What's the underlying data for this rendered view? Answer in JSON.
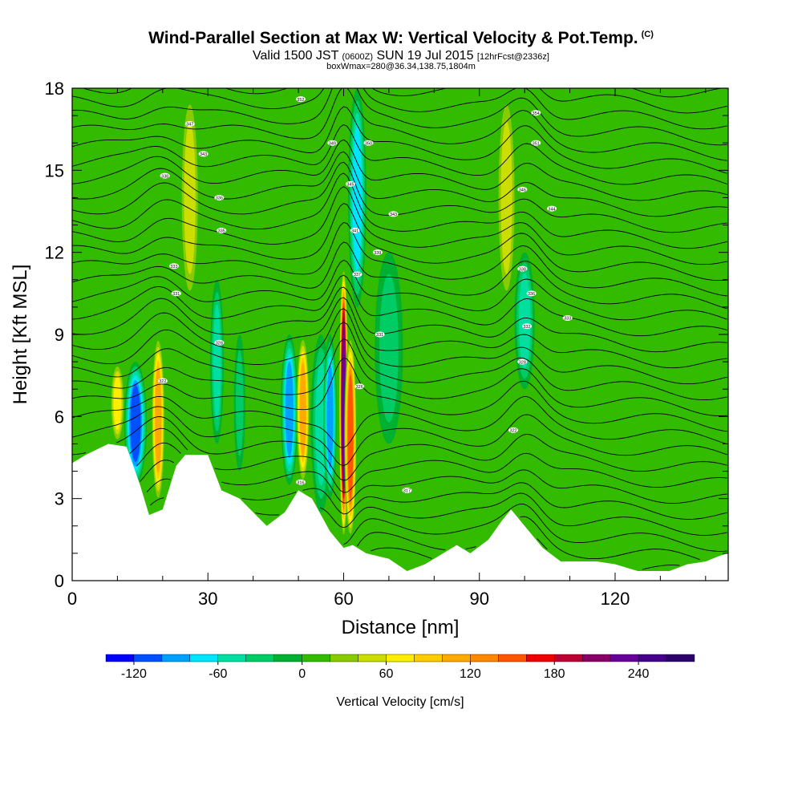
{
  "titles": {
    "main": "Wind-Parallel Section at Max W: Vertical Velocity & Pot.Temp.",
    "corner": "(C)",
    "valid_main": "Valid 1500 JST",
    "valid_small1": "(0600Z)",
    "valid_date": "SUN 19 Jul 2015",
    "valid_small2": "[12hrFcst@2336z]",
    "box": "boxWmax=280@36.34,138.75,1804m"
  },
  "chart_data": {
    "type": "heatmap",
    "title": "Wind-Parallel Section at Max W: Vertical Velocity & Pot.Temp.",
    "xlabel": "Distance [nm]",
    "ylabel": "Height [Kft MSL]",
    "xlim": [
      0,
      145
    ],
    "ylim": [
      0,
      18
    ],
    "x_ticks": [
      0,
      30,
      60,
      90,
      120
    ],
    "y_ticks": [
      0,
      3,
      6,
      9,
      12,
      15,
      18
    ],
    "colorbar": {
      "label": "Vertical Velocity [cm/s]",
      "min": -140,
      "max": 280,
      "step": 20,
      "tick_values": [
        -120,
        -60,
        0,
        60,
        120,
        180,
        240
      ],
      "colors": [
        "#0000ff",
        "#0050ff",
        "#00a0ff",
        "#00e5ff",
        "#00dfa0",
        "#00cc66",
        "#00b030",
        "#33bb00",
        "#88cc00",
        "#ccdd00",
        "#ffee00",
        "#ffcc00",
        "#ffaa00",
        "#ff8800",
        "#ff5500",
        "#ee0000",
        "#bb0033",
        "#880066",
        "#660099",
        "#440088",
        "#2a006a"
      ]
    },
    "terrain_kft": [
      [
        0,
        4.3
      ],
      [
        3,
        4.6
      ],
      [
        8,
        5.0
      ],
      [
        12,
        4.9
      ],
      [
        15,
        3.5
      ],
      [
        17,
        2.4
      ],
      [
        20,
        2.6
      ],
      [
        23,
        4.2
      ],
      [
        25,
        4.6
      ],
      [
        30,
        4.6
      ],
      [
        33,
        3.3
      ],
      [
        37,
        3.0
      ],
      [
        40,
        2.5
      ],
      [
        43,
        2.0
      ],
      [
        47,
        2.5
      ],
      [
        50,
        3.3
      ],
      [
        53,
        3.0
      ],
      [
        57,
        1.8
      ],
      [
        60,
        1.2
      ],
      [
        62,
        1.3
      ],
      [
        65,
        1.0
      ],
      [
        70,
        0.8
      ],
      [
        74,
        0.35
      ],
      [
        78,
        0.6
      ],
      [
        82,
        1.0
      ],
      [
        85,
        1.3
      ],
      [
        88,
        1.0
      ],
      [
        92,
        1.5
      ],
      [
        95,
        2.2
      ],
      [
        97,
        2.6
      ],
      [
        100,
        2.0
      ],
      [
        104,
        1.2
      ],
      [
        108,
        0.7
      ],
      [
        112,
        0.7
      ],
      [
        116,
        0.7
      ],
      [
        120,
        0.6
      ],
      [
        125,
        0.35
      ],
      [
        132,
        0.35
      ],
      [
        136,
        0.6
      ],
      [
        140,
        0.7
      ],
      [
        143,
        0.9
      ],
      [
        145,
        1.0
      ]
    ],
    "features": [
      {
        "x": 14,
        "w": 2.0,
        "ybot": 3.5,
        "ytop": 8.0,
        "val": -120
      },
      {
        "x": 19,
        "w": 1.2,
        "ybot": 2.8,
        "ytop": 9.0,
        "val": 110
      },
      {
        "x": 10,
        "w": 1.3,
        "ybot": 5.0,
        "ytop": 8.0,
        "val": 75
      },
      {
        "x": 26,
        "w": 1.8,
        "ybot": 10.0,
        "ytop": 18.0,
        "val": 60
      },
      {
        "x": 32,
        "w": 1.2,
        "ybot": 5.0,
        "ytop": 11.0,
        "val": -45
      },
      {
        "x": 37,
        "w": 1.0,
        "ybot": 4.0,
        "ytop": 9.0,
        "val": -30
      },
      {
        "x": 48,
        "w": 1.5,
        "ybot": 3.5,
        "ytop": 9.0,
        "val": -90
      },
      {
        "x": 51,
        "w": 1.2,
        "ybot": 3.5,
        "ytop": 9.0,
        "val": 105
      },
      {
        "x": 55,
        "w": 1.8,
        "ybot": 2.5,
        "ytop": 9.0,
        "val": -60
      },
      {
        "x": 57,
        "w": 1.2,
        "ybot": 3.0,
        "ytop": 9.0,
        "val": -100
      },
      {
        "x": 60,
        "w": 0.8,
        "ybot": 1.5,
        "ytop": 11.5,
        "val": 240
      },
      {
        "x": 61.5,
        "w": 1.1,
        "ybot": 1.5,
        "ytop": 9.0,
        "val": 150
      },
      {
        "x": 63,
        "w": 1.6,
        "ybot": 10.0,
        "ytop": 18.0,
        "val": -75
      },
      {
        "x": 70,
        "w": 2.5,
        "ybot": 5.0,
        "ytop": 12.0,
        "val": -30
      },
      {
        "x": 96,
        "w": 1.8,
        "ybot": 10.0,
        "ytop": 18.0,
        "val": 60
      },
      {
        "x": 100,
        "w": 1.8,
        "ybot": 7.0,
        "ytop": 12.0,
        "val": -45
      }
    ],
    "contour_labels": [
      {
        "x": 26,
        "y": 16.7,
        "text": "347"
      },
      {
        "x": 29,
        "y": 15.6,
        "text": "343"
      },
      {
        "x": 20.5,
        "y": 14.8,
        "text": "338"
      },
      {
        "x": 32.5,
        "y": 14.0,
        "text": "336"
      },
      {
        "x": 33,
        "y": 12.8,
        "text": "335"
      },
      {
        "x": 22.5,
        "y": 11.5,
        "text": "333"
      },
      {
        "x": 23,
        "y": 10.5,
        "text": "331"
      },
      {
        "x": 32.5,
        "y": 8.7,
        "text": "328"
      },
      {
        "x": 20,
        "y": 7.3,
        "text": "322"
      },
      {
        "x": 50.5,
        "y": 3.6,
        "text": "316"
      },
      {
        "x": 50.5,
        "y": 17.6,
        "text": "352"
      },
      {
        "x": 57.5,
        "y": 16.0,
        "text": "349"
      },
      {
        "x": 65.5,
        "y": 16.0,
        "text": "350"
      },
      {
        "x": 61.5,
        "y": 14.5,
        "text": "345"
      },
      {
        "x": 71,
        "y": 13.4,
        "text": "343"
      },
      {
        "x": 62.5,
        "y": 12.8,
        "text": "341"
      },
      {
        "x": 67.5,
        "y": 12.0,
        "text": "339"
      },
      {
        "x": 63,
        "y": 11.2,
        "text": "337"
      },
      {
        "x": 68,
        "y": 9.0,
        "text": "331"
      },
      {
        "x": 63.5,
        "y": 7.1,
        "text": "326"
      },
      {
        "x": 74,
        "y": 3.3,
        "text": "317"
      },
      {
        "x": 102.5,
        "y": 17.1,
        "text": "354"
      },
      {
        "x": 102.5,
        "y": 16.0,
        "text": "351"
      },
      {
        "x": 99.5,
        "y": 14.3,
        "text": "346"
      },
      {
        "x": 106,
        "y": 13.6,
        "text": "344"
      },
      {
        "x": 99.5,
        "y": 11.4,
        "text": "338"
      },
      {
        "x": 101.5,
        "y": 10.5,
        "text": "336"
      },
      {
        "x": 109.5,
        "y": 9.6,
        "text": "333"
      },
      {
        "x": 100.5,
        "y": 9.3,
        "text": "332"
      },
      {
        "x": 99.5,
        "y": 8.0,
        "text": "328"
      },
      {
        "x": 97.5,
        "y": 5.5,
        "text": "322"
      }
    ]
  }
}
